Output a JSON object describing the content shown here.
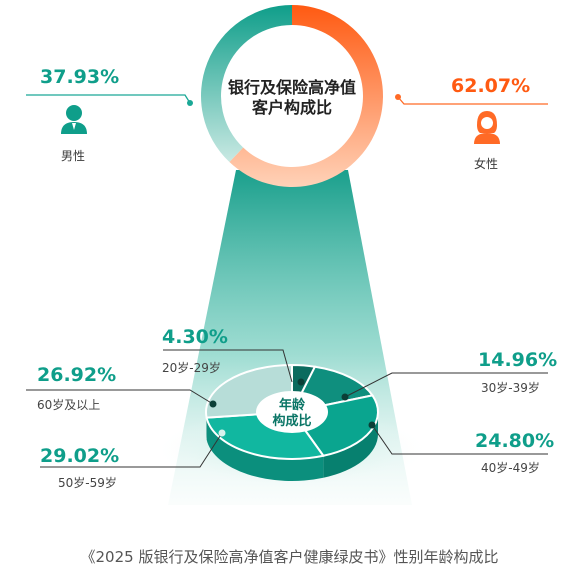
{
  "chart_data": [
    {
      "type": "pie",
      "title": "银行及保险高净值客户构成比",
      "slices": [
        {
          "label": "男性",
          "value": 37.93,
          "value_text": "37.93%",
          "color": "#1aa896"
        },
        {
          "label": "女性",
          "value": 62.07,
          "value_text": "62.07%",
          "color": "#ff6a26"
        }
      ]
    },
    {
      "type": "pie",
      "title": "年龄构成比",
      "slices": [
        {
          "label": "20岁-29岁",
          "value": 4.3,
          "value_text": "4.30%",
          "color": "#0b6b5e"
        },
        {
          "label": "30岁-39岁",
          "value": 14.96,
          "value_text": "14.96%",
          "color": "#0f8f7e"
        },
        {
          "label": "40岁-49岁",
          "value": 24.8,
          "value_text": "24.80%",
          "color": "#0aa58f"
        },
        {
          "label": "50岁-59岁",
          "value": 29.02,
          "value_text": "29.02%",
          "color": "#11b7a0"
        },
        {
          "label": "60岁及以上",
          "value": 26.92,
          "value_text": "26.92%",
          "color": "#b7ddd8"
        }
      ]
    }
  ],
  "icons": {
    "male": "male-person-icon",
    "female": "female-person-icon"
  },
  "caption": "《2025 版银行及保险高净值客户健康绿皮书》性别年龄构成比"
}
